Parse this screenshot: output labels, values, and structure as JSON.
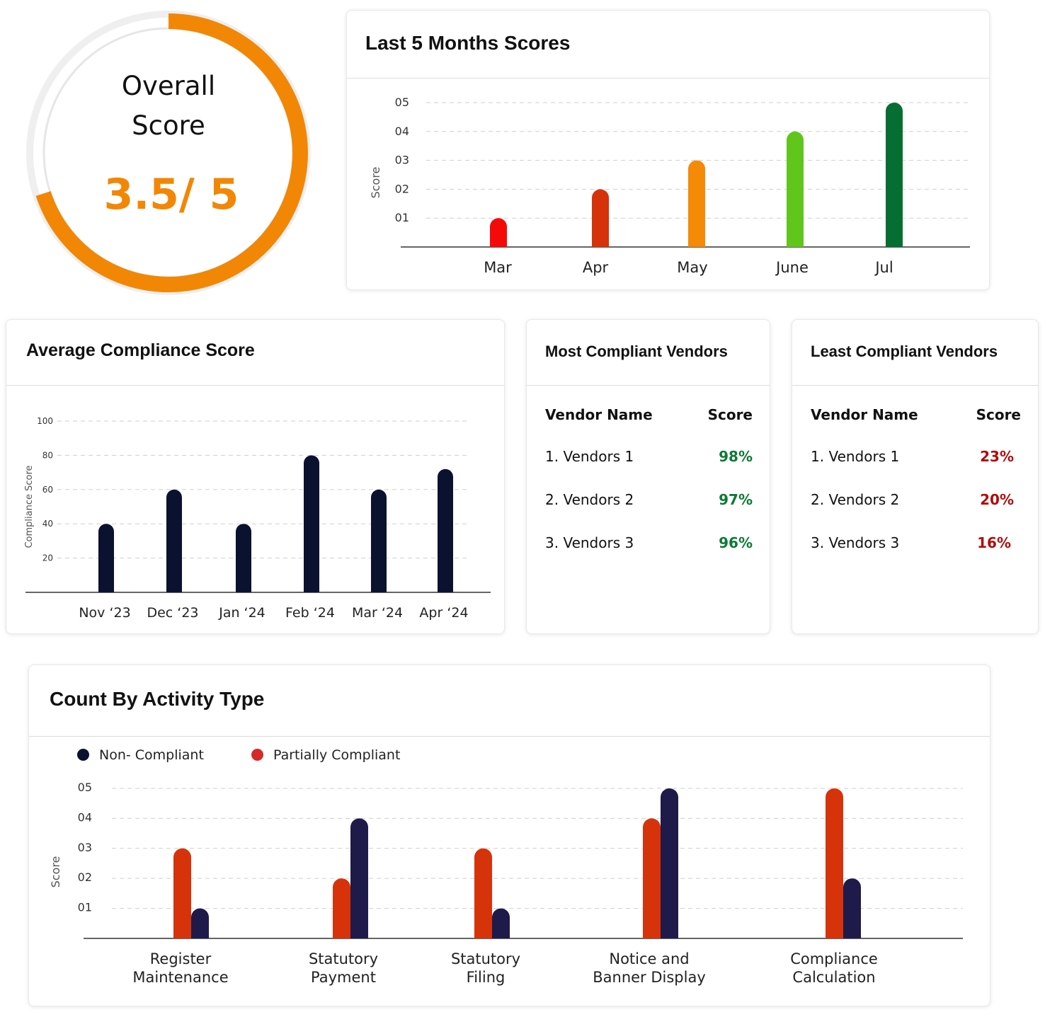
{
  "overall": {
    "title_line1": "Overall",
    "title_line2": "Score",
    "score_text": "3.5/ 5",
    "score": 3.5,
    "max": 5,
    "accent_color": "#F28705"
  },
  "chart_data": [
    {
      "id": "last5",
      "type": "bar",
      "title": "Last 5 Months Scores",
      "ylabel": "Score",
      "xlabel": "",
      "categories": [
        "Mar",
        "Apr",
        "May",
        "June",
        "Jul"
      ],
      "values": [
        1,
        2,
        3,
        4,
        5
      ],
      "colors": [
        "#F50A0A",
        "#D6330A",
        "#F58A07",
        "#61C61B",
        "#046E33"
      ],
      "yticks": [
        "01",
        "02",
        "03",
        "04",
        "05"
      ],
      "ylim": [
        0,
        5
      ],
      "grid": true
    },
    {
      "id": "avg",
      "type": "bar",
      "title": "Average Compliance Score",
      "ylabel": "Compliance Score",
      "xlabel": "",
      "categories": [
        "Nov ‘23",
        "Dec ‘23",
        "Jan ‘24",
        "Feb ‘24",
        "Mar ‘24",
        "Apr ‘24"
      ],
      "values": [
        40,
        60,
        40,
        80,
        60,
        72
      ],
      "color": "#0B1230",
      "yticks": [
        "20",
        "40",
        "60",
        "80",
        "100"
      ],
      "ylim": [
        0,
        100
      ],
      "grid": true
    },
    {
      "id": "activity",
      "type": "bar",
      "title": "Count By Activity Type",
      "ylabel": "Score",
      "xlabel": "",
      "categories": [
        [
          "Register",
          "Maintenance"
        ],
        [
          "Statutory",
          "Payment"
        ],
        [
          "Statutory",
          "Filing"
        ],
        [
          "Notice and",
          "Banner Display"
        ],
        [
          "Compliance",
          "Calculation"
        ]
      ],
      "series": [
        {
          "name": "Partially Compliant",
          "values": [
            3,
            2,
            3,
            4,
            5
          ],
          "color": "#D6330A"
        },
        {
          "name": "Non- Compliant",
          "values": [
            1,
            4,
            1,
            5,
            2
          ],
          "color": "#1E1A4A"
        }
      ],
      "legend": [
        {
          "name": "Non- Compliant",
          "color": "#0B1230"
        },
        {
          "name": "Partially Compliant",
          "color": "#D62A2A"
        }
      ],
      "yticks": [
        "01",
        "02",
        "03",
        "04",
        "05"
      ],
      "ylim": [
        0,
        5
      ],
      "grid": true
    }
  ],
  "most_compliant": {
    "title": "Most Compliant Vendors",
    "col_name": "Vendor Name",
    "col_score": "Score",
    "score_color": "#0E7A35",
    "rows": [
      {
        "name": "1. Vendors 1",
        "score": "98%"
      },
      {
        "name": "2. Vendors 2",
        "score": "97%"
      },
      {
        "name": "3. Vendors 3",
        "score": "96%"
      }
    ]
  },
  "least_compliant": {
    "title": "Least Compliant Vendors",
    "col_name": "Vendor Name",
    "col_score": "Score",
    "score_color": "#B00D0D",
    "rows": [
      {
        "name": "1. Vendors 1",
        "score": "23%"
      },
      {
        "name": "2. Vendors 2",
        "score": "20%"
      },
      {
        "name": "3. Vendors 3",
        "score": "16%"
      }
    ]
  }
}
